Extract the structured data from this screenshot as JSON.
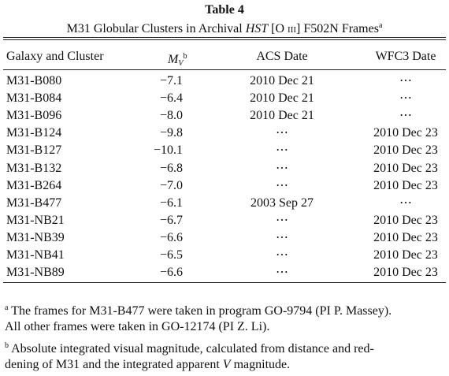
{
  "title": "Table 4",
  "caption": {
    "before": "M31 Globular Clusters in Archival ",
    "italic": "HST",
    "mid": " [O ",
    "smallcaps": "III",
    "after": "] F502N Frames",
    "note": "a"
  },
  "table": {
    "header": {
      "cluster": "Galaxy and Cluster",
      "mag": {
        "symbol": "M",
        "sub": "V",
        "note": "b"
      },
      "acs": "ACS Date",
      "wfc3": "WFC3 Date"
    },
    "rows": [
      [
        "M31-B080",
        "−7.1",
        "2010 Dec 21",
        "⋯"
      ],
      [
        "M31-B084",
        "−6.4",
        "2010 Dec 21",
        "⋯"
      ],
      [
        "M31-B096",
        "−8.0",
        "2010 Dec 21",
        "⋯"
      ],
      [
        "M31-B124",
        "−9.8",
        "⋯",
        "2010 Dec 23"
      ],
      [
        "M31-B127",
        "−10.1",
        "⋯",
        "2010 Dec 23"
      ],
      [
        "M31-B132",
        "−6.8",
        "⋯",
        "2010 Dec 23"
      ],
      [
        "M31-B264",
        "−7.0",
        "⋯",
        "2010 Dec 23"
      ],
      [
        "M31-B477",
        "−6.1",
        "2003 Sep 27",
        "⋯"
      ],
      [
        "M31-NB21",
        "−6.7",
        "⋯",
        "2010 Dec 23"
      ],
      [
        "M31-NB39",
        "−6.6",
        "⋯",
        "2010 Dec 23"
      ],
      [
        "M31-NB41",
        "−6.5",
        "⋯",
        "2010 Dec 23"
      ],
      [
        "M31-NB89",
        "−6.6",
        "⋯",
        "2010 Dec 23"
      ]
    ]
  },
  "footnotes": [
    {
      "marker": "a",
      "lines": [
        "The frames for M31-B477 were taken in program GO-9794 (PI P. Massey).",
        "All other frames were taken in GO-12174 (PI Z. Li)."
      ]
    },
    {
      "marker": "b",
      "line1": "Absolute integrated visual magnitude, calculated from distance and red-",
      "line2": {
        "before": "dening of M31 and the integrated apparent ",
        "italic": "V",
        "after": " magnitude."
      }
    }
  ]
}
